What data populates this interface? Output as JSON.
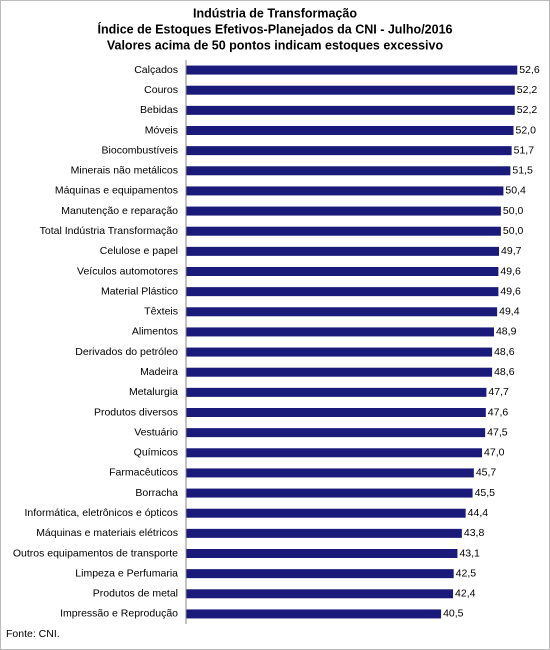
{
  "chart_data": {
    "type": "bar",
    "orientation": "horizontal",
    "title": [
      "Indústria de Transformação",
      "Índice de Estoques Efetivos-Planejados da CNI - Julho/2016",
      "Valores acima de 50 pontos indicam estoques excessivo"
    ],
    "source": "Fonte: CNI.",
    "categories": [
      "Calçados",
      "Couros",
      "Bebidas",
      "Móveis",
      "Biocombustíveis",
      "Minerais não metálicos",
      "Máquinas e equipamentos",
      "Manutenção e reparação",
      "Total Indústria Transformação",
      "Celulose e papel",
      "Veículos automotores",
      "Material Plástico",
      "Têxteis",
      "Alimentos",
      "Derivados do petróleo",
      "Madeira",
      "Metalurgia",
      "Produtos diversos",
      "Vestuário",
      "Químicos",
      "Farmacêuticos",
      "Borracha",
      "Informática, eletrônicos e ópticos",
      "Máquinas e materiais elétricos",
      "Outros equipamentos de transporte",
      "Limpeza e Perfumaria",
      "Produtos de metal",
      "Impressão e Reprodução"
    ],
    "values": [
      52.6,
      52.2,
      52.2,
      52.0,
      51.7,
      51.5,
      50.4,
      50.0,
      50.0,
      49.7,
      49.6,
      49.6,
      49.4,
      48.9,
      48.6,
      48.6,
      47.7,
      47.6,
      47.5,
      47.0,
      45.7,
      45.5,
      44.4,
      43.8,
      43.1,
      42.5,
      42.4,
      40.5
    ],
    "value_labels": [
      "52,6",
      "52,2",
      "52,2",
      "52,0",
      "51,7",
      "51,5",
      "50,4",
      "50,0",
      "50,0",
      "49,7",
      "49,6",
      "49,6",
      "49,4",
      "48,9",
      "48,6",
      "48,6",
      "47,7",
      "47,6",
      "47,5",
      "47,0",
      "45,7",
      "45,5",
      "44,4",
      "43,8",
      "43,1",
      "42,5",
      "42,4",
      "40,5"
    ],
    "color": "#1a1a7a",
    "xlim": [
      0,
      57
    ]
  }
}
